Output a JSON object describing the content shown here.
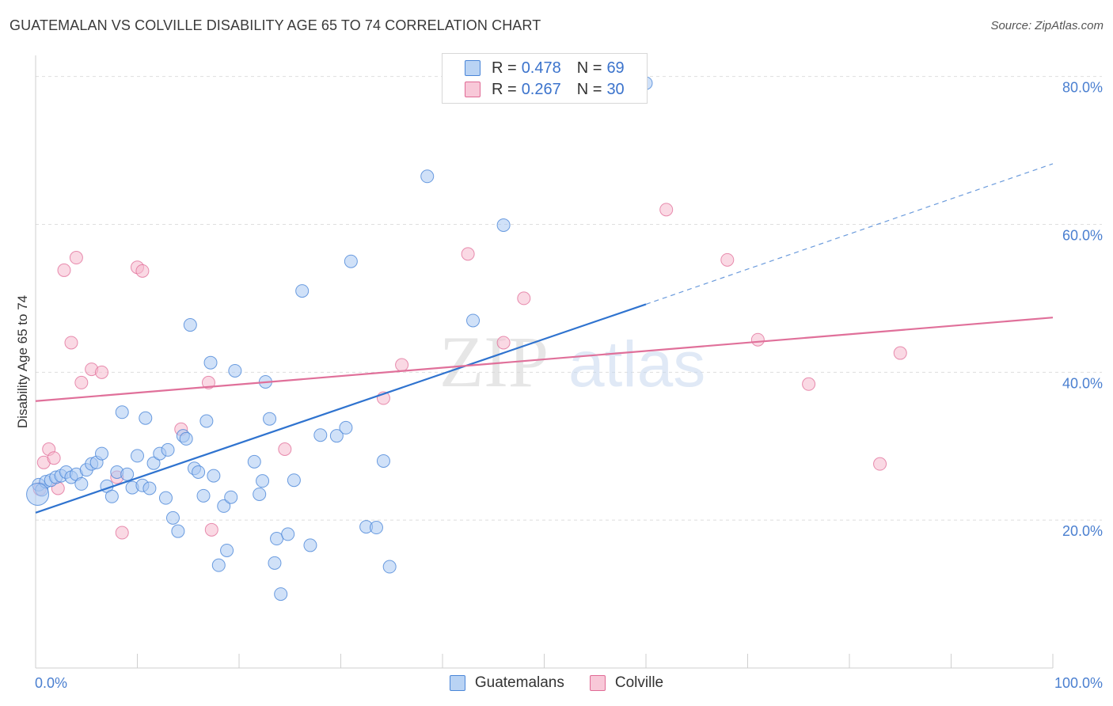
{
  "header": {
    "title": "GUATEMALAN VS COLVILLE DISABILITY AGE 65 TO 74 CORRELATION CHART",
    "source": "Source: ZipAtlas.com"
  },
  "legend": {
    "series1": {
      "r_label": "R =",
      "r_value": "0.478",
      "n_label": "N =",
      "n_value": "69"
    },
    "series2": {
      "r_label": "R =",
      "r_value": "0.267",
      "n_label": "N =",
      "n_value": "30"
    }
  },
  "bottom_legend": {
    "series1": "Guatemalans",
    "series2": "Colville"
  },
  "watermark": {
    "part1": "ZIP",
    "part2": "atlas"
  },
  "chart_data": {
    "type": "scatter",
    "ylabel": "Disability Age 65 to 74",
    "x_tick_labels": [
      "0.0%",
      "100.0%"
    ],
    "y_tick_labels": [
      "20.0%",
      "40.0%",
      "60.0%",
      "80.0%"
    ],
    "xlim": [
      0,
      100
    ],
    "ylim": [
      0,
      82
    ],
    "colors": {
      "guatemalans": "#4a86d8",
      "colville": "#e06a95",
      "guatemalans_fill": "#a9c8f2",
      "colville_fill": "#f5b9cd"
    },
    "series": [
      {
        "name": "Guatemalans",
        "trend": {
          "x0": 0,
          "y0": 21,
          "x1": 60,
          "y1": 49.2,
          "dashed_to_x": 100,
          "dashed_to_y": 68.2
        },
        "points": [
          [
            0.3,
            24.8
          ],
          [
            0.6,
            24.1
          ],
          [
            1,
            25.2
          ],
          [
            1.5,
            25.4
          ],
          [
            2,
            25.8
          ],
          [
            2.5,
            26
          ],
          [
            3,
            26.5
          ],
          [
            3.5,
            25.8
          ],
          [
            4,
            26.2
          ],
          [
            4.5,
            24.9
          ],
          [
            5,
            26.8
          ],
          [
            5.5,
            27.6
          ],
          [
            6,
            27.8
          ],
          [
            6.5,
            29
          ],
          [
            7,
            24.6
          ],
          [
            7.5,
            23.2
          ],
          [
            8,
            26.5
          ],
          [
            8.5,
            34.6
          ],
          [
            9,
            26.2
          ],
          [
            9.5,
            24.4
          ],
          [
            10,
            28.7
          ],
          [
            10.5,
            24.7
          ],
          [
            10.8,
            33.8
          ],
          [
            11.2,
            24.3
          ],
          [
            11.6,
            27.7
          ],
          [
            12.2,
            29
          ],
          [
            12.8,
            23
          ],
          [
            13,
            29.5
          ],
          [
            13.5,
            20.3
          ],
          [
            14,
            18.5
          ],
          [
            14.5,
            31.4
          ],
          [
            14.8,
            31
          ],
          [
            15.2,
            46.4
          ],
          [
            15.6,
            27
          ],
          [
            16,
            26.5
          ],
          [
            16.5,
            23.3
          ],
          [
            16.8,
            33.4
          ],
          [
            17.2,
            41.3
          ],
          [
            17.5,
            26
          ],
          [
            18,
            13.9
          ],
          [
            18.5,
            21.9
          ],
          [
            18.8,
            15.9
          ],
          [
            19.2,
            23.1
          ],
          [
            19.6,
            40.2
          ],
          [
            21.5,
            27.9
          ],
          [
            22,
            23.5
          ],
          [
            22.3,
            25.3
          ],
          [
            22.6,
            38.7
          ],
          [
            23,
            33.7
          ],
          [
            23.5,
            14.2
          ],
          [
            23.7,
            17.5
          ],
          [
            24.1,
            10
          ],
          [
            24.8,
            18.1
          ],
          [
            25.4,
            25.4
          ],
          [
            26.2,
            51
          ],
          [
            27,
            16.6
          ],
          [
            28,
            31.5
          ],
          [
            29.6,
            31.4
          ],
          [
            30.5,
            32.5
          ],
          [
            31,
            55
          ],
          [
            32.5,
            19.1
          ],
          [
            33.5,
            19
          ],
          [
            34.2,
            28
          ],
          [
            34.8,
            13.7
          ],
          [
            38.5,
            66.5
          ],
          [
            43,
            47
          ],
          [
            46,
            59.9
          ],
          [
            60,
            79.1
          ],
          [
            0.2,
            23.5
          ]
        ]
      },
      {
        "name": "Colville",
        "trend": {
          "x0": 0,
          "y0": 36.1,
          "x1": 100,
          "y1": 47.4
        },
        "points": [
          [
            0.4,
            24.2
          ],
          [
            0.8,
            27.8
          ],
          [
            1.3,
            29.6
          ],
          [
            1.8,
            28.4
          ],
          [
            2.2,
            24.3
          ],
          [
            2.8,
            53.8
          ],
          [
            3.5,
            44
          ],
          [
            4,
            55.5
          ],
          [
            4.5,
            38.6
          ],
          [
            5.5,
            40.4
          ],
          [
            6.5,
            40
          ],
          [
            8,
            25.8
          ],
          [
            8.5,
            18.3
          ],
          [
            10,
            54.2
          ],
          [
            10.5,
            53.7
          ],
          [
            14.3,
            32.3
          ],
          [
            17,
            38.6
          ],
          [
            17.3,
            18.7
          ],
          [
            24.5,
            29.6
          ],
          [
            34.2,
            36.5
          ],
          [
            36,
            41
          ],
          [
            42.5,
            56
          ],
          [
            46,
            44
          ],
          [
            48,
            50
          ],
          [
            62,
            62
          ],
          [
            68,
            55.2
          ],
          [
            71,
            44.4
          ],
          [
            76,
            38.4
          ],
          [
            83,
            27.6
          ],
          [
            85,
            42.6
          ]
        ]
      }
    ]
  }
}
